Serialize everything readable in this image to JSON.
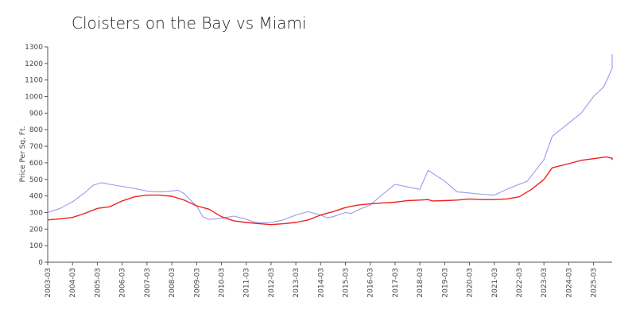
{
  "chart_data": {
    "type": "line",
    "title": "Cloisters on the Bay vs Miami",
    "xlabel": "",
    "ylabel": "Price Per Sq. Ft.",
    "ylim": [
      0,
      1300
    ],
    "yticks": [
      0,
      100,
      200,
      300,
      400,
      500,
      600,
      700,
      800,
      900,
      1000,
      1100,
      1200,
      1300
    ],
    "xlim": [
      "2003-03",
      "2025-12"
    ],
    "xticks": [
      "2003-03",
      "2004-03",
      "2005-03",
      "2006-03",
      "2007-03",
      "2008-03",
      "2009-03",
      "2010-03",
      "2011-03",
      "2012-03",
      "2013-03",
      "2014-03",
      "2015-03",
      "2016-03",
      "2017-03",
      "2018-03",
      "2019-03",
      "2020-03",
      "2021-03",
      "2022-03",
      "2023-03",
      "2024-03",
      "2025-03"
    ],
    "grid": false,
    "legend": "none",
    "series": [
      {
        "color": "#9999ee",
        "points": [
          [
            "2003-03",
            300
          ],
          [
            "2003-09",
            325
          ],
          [
            "2004-03",
            365
          ],
          [
            "2004-09",
            420
          ],
          [
            "2005-01",
            465
          ],
          [
            "2005-05",
            480
          ],
          [
            "2005-09",
            470
          ],
          [
            "2006-03",
            458
          ],
          [
            "2006-09",
            445
          ],
          [
            "2007-03",
            430
          ],
          [
            "2007-09",
            425
          ],
          [
            "2008-03",
            430
          ],
          [
            "2008-06",
            435
          ],
          [
            "2008-09",
            415
          ],
          [
            "2008-12",
            375
          ],
          [
            "2009-03",
            340
          ],
          [
            "2009-06",
            275
          ],
          [
            "2009-09",
            258
          ],
          [
            "2010-03",
            265
          ],
          [
            "2010-09",
            278
          ],
          [
            "2011-03",
            260
          ],
          [
            "2011-06",
            245
          ],
          [
            "2011-09",
            238
          ],
          [
            "2012-03",
            240
          ],
          [
            "2012-09",
            255
          ],
          [
            "2013-03",
            285
          ],
          [
            "2013-09",
            305
          ],
          [
            "2014-03",
            285
          ],
          [
            "2014-06",
            268
          ],
          [
            "2014-09",
            275
          ],
          [
            "2015-03",
            300
          ],
          [
            "2015-06",
            295
          ],
          [
            "2015-09",
            315
          ],
          [
            "2016-03",
            345
          ],
          [
            "2016-09",
            410
          ],
          [
            "2017-03",
            470
          ],
          [
            "2017-09",
            455
          ],
          [
            "2018-03",
            440
          ],
          [
            "2018-07",
            555
          ],
          [
            "2019-03",
            490
          ],
          [
            "2019-09",
            425
          ],
          [
            "2020-03",
            418
          ],
          [
            "2020-09",
            410
          ],
          [
            "2021-03",
            405
          ],
          [
            "2021-09",
            440
          ],
          [
            "2022-03",
            470
          ],
          [
            "2022-07",
            490
          ],
          [
            "2023-03",
            620
          ],
          [
            "2023-07",
            760
          ],
          [
            "2024-03",
            840
          ],
          [
            "2024-09",
            900
          ],
          [
            "2025-03",
            1000
          ],
          [
            "2025-08",
            1060
          ],
          [
            "2026-03",
            1170
          ],
          [
            "2026-07",
            1235
          ],
          [
            "2026-09",
            1255
          ],
          [
            "2026-12",
            1248
          ]
        ]
      },
      {
        "color": "#ee2222",
        "points": [
          [
            "2003-03",
            255
          ],
          [
            "2003-09",
            262
          ],
          [
            "2004-03",
            270
          ],
          [
            "2004-09",
            295
          ],
          [
            "2005-03",
            325
          ],
          [
            "2005-09",
            335
          ],
          [
            "2006-03",
            370
          ],
          [
            "2006-09",
            395
          ],
          [
            "2007-03",
            405
          ],
          [
            "2007-09",
            405
          ],
          [
            "2008-03",
            398
          ],
          [
            "2008-09",
            375
          ],
          [
            "2009-03",
            340
          ],
          [
            "2009-09",
            320
          ],
          [
            "2010-03",
            275
          ],
          [
            "2010-09",
            250
          ],
          [
            "2011-03",
            240
          ],
          [
            "2011-09",
            233
          ],
          [
            "2012-03",
            227
          ],
          [
            "2012-09",
            232
          ],
          [
            "2013-03",
            240
          ],
          [
            "2013-09",
            255
          ],
          [
            "2014-03",
            285
          ],
          [
            "2014-09",
            305
          ],
          [
            "2015-03",
            330
          ],
          [
            "2015-09",
            345
          ],
          [
            "2016-03",
            352
          ],
          [
            "2016-09",
            358
          ],
          [
            "2017-03",
            362
          ],
          [
            "2017-09",
            372
          ],
          [
            "2018-03",
            375
          ],
          [
            "2018-07",
            378
          ],
          [
            "2018-09",
            370
          ],
          [
            "2019-03",
            372
          ],
          [
            "2019-09",
            375
          ],
          [
            "2020-03",
            382
          ],
          [
            "2020-09",
            378
          ],
          [
            "2021-03",
            378
          ],
          [
            "2021-09",
            382
          ],
          [
            "2022-03",
            395
          ],
          [
            "2022-09",
            440
          ],
          [
            "2023-03",
            500
          ],
          [
            "2023-07",
            570
          ],
          [
            "2024-03",
            595
          ],
          [
            "2024-09",
            615
          ],
          [
            "2025-03",
            625
          ],
          [
            "2025-09",
            635
          ],
          [
            "2026-03",
            628
          ],
          [
            "2026-07",
            620
          ],
          [
            "2026-09",
            628
          ],
          [
            "2026-12",
            625
          ]
        ]
      }
    ]
  }
}
